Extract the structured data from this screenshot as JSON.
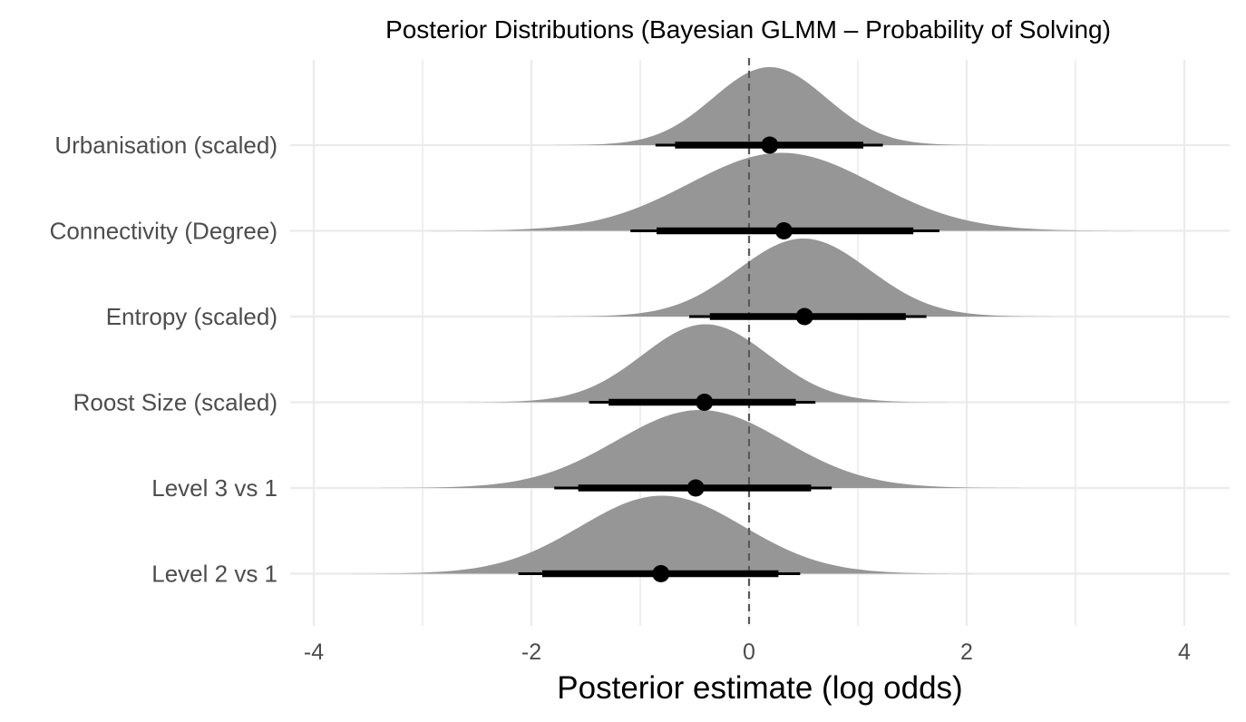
{
  "chart_data": {
    "type": "halfeye",
    "title": "Posterior Distributions (Bayesian GLMM – Probability of Solving)",
    "xlabel": "Posterior estimate (log odds)",
    "ylabel": "",
    "xlim": [
      -4,
      4
    ],
    "xticks": [
      -4,
      -2,
      0,
      2,
      4
    ],
    "xtick_labels": [
      "-4",
      "-2",
      "0",
      "2",
      "4"
    ],
    "grid": true,
    "reference_line": 0,
    "parameters": [
      {
        "name": "Urbanisation (scaled)",
        "median": 0.19,
        "mean": 0.19,
        "sd": 0.52,
        "ci66": [
          -0.68,
          1.05
        ],
        "ci95": [
          -0.86,
          1.23
        ]
      },
      {
        "name": "Connectivity (Degree)",
        "median": 0.32,
        "mean": 0.3,
        "sd": 0.85,
        "ci66": [
          -0.85,
          1.51
        ],
        "ci95": [
          -1.09,
          1.75
        ]
      },
      {
        "name": "Entropy (scaled)",
        "median": 0.51,
        "mean": 0.5,
        "sd": 0.6,
        "ci66": [
          -0.36,
          1.44
        ],
        "ci95": [
          -0.55,
          1.63
        ]
      },
      {
        "name": "Roost Size (scaled)",
        "median": -0.41,
        "mean": -0.4,
        "sd": 0.58,
        "ci66": [
          -1.29,
          0.43
        ],
        "ci95": [
          -1.47,
          0.61
        ]
      },
      {
        "name": "Level 3 vs 1",
        "median": -0.49,
        "mean": -0.45,
        "sd": 0.77,
        "ci66": [
          -1.57,
          0.57
        ],
        "ci95": [
          -1.79,
          0.76
        ]
      },
      {
        "name": "Level 2 vs 1",
        "median": -0.81,
        "mean": -0.8,
        "sd": 0.75,
        "ci66": [
          -1.9,
          0.27
        ],
        "ci95": [
          -2.12,
          0.47
        ]
      }
    ]
  },
  "colors": {
    "density_fill": "#969696",
    "interval": "#000000",
    "grid": "#ebebeb",
    "reference_line": "#595959"
  }
}
